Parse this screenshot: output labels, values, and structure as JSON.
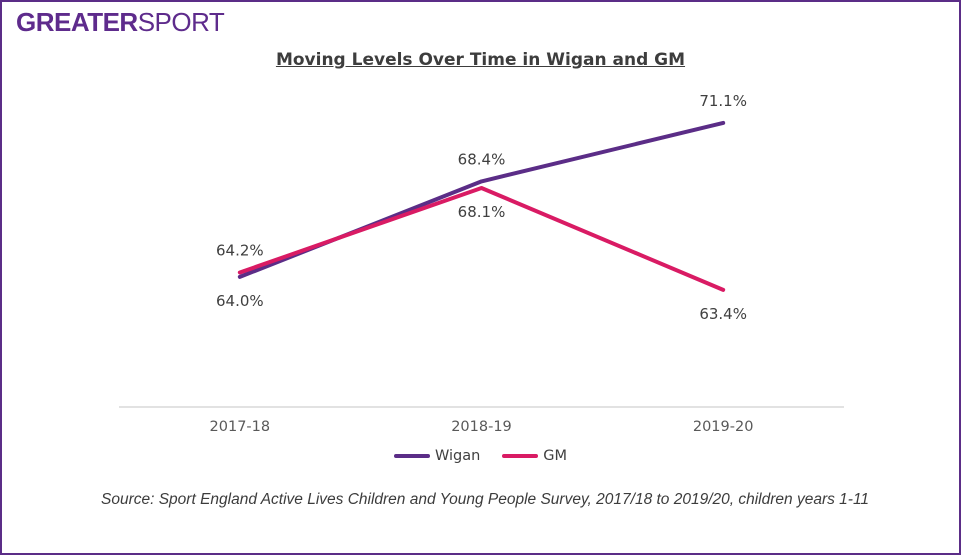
{
  "logo": {
    "bold_text": "GREATER",
    "light_text": "SPORT",
    "color": "#5e2b8c"
  },
  "title": "Moving Levels Over Time in Wigan and GM",
  "chart_data": {
    "type": "line",
    "title": "Moving Levels Over Time in Wigan and GM",
    "categories": [
      "2017-18",
      "2018-19",
      "2019-20"
    ],
    "series": [
      {
        "name": "Wigan",
        "color": "#5b2d87",
        "values": [
          64.0,
          68.4,
          71.1
        ],
        "point_labels": [
          "64.0%",
          "68.4%",
          "71.1%"
        ]
      },
      {
        "name": "GM",
        "color": "#d91b64",
        "values": [
          64.2,
          68.1,
          63.4
        ],
        "point_labels": [
          "64.2%",
          "68.1%",
          "63.4%"
        ]
      }
    ],
    "xlabel": "",
    "ylabel": "",
    "ylim": [
      58,
      74
    ],
    "unit": "%",
    "grid": false,
    "legend_position": "bottom"
  },
  "colors": {
    "axis": "#d9d9d9",
    "data_label": "#404040",
    "tick_label": "#595959",
    "border": "#5b2d87"
  },
  "source_note": "Source: Sport England Active Lives Children and Young People Survey, 2017/18 to 2019/20, children years 1-11"
}
